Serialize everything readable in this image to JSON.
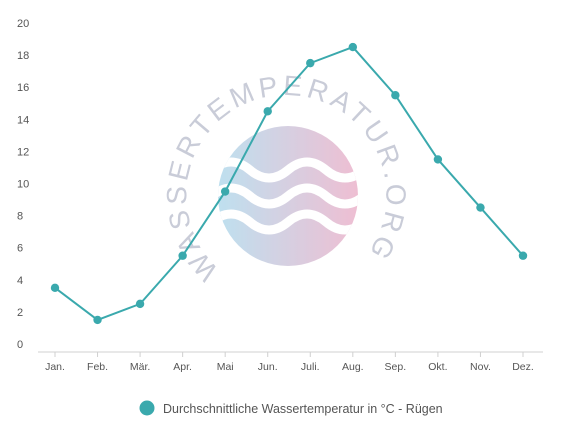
{
  "chart_data": {
    "type": "line",
    "categories": [
      "Jan.",
      "Feb.",
      "Mär.",
      "Apr.",
      "Mai",
      "Jun.",
      "Juli.",
      "Aug.",
      "Sep.",
      "Okt.",
      "Nov.",
      "Dez."
    ],
    "series": [
      {
        "name": "Durchschnittliche Wassertemperatur in °C - Rügen",
        "values": [
          3.5,
          1.5,
          2.5,
          5.5,
          9.5,
          14.5,
          17.5,
          18.5,
          15.5,
          11.5,
          8.5,
          5.5
        ],
        "color": "#3aa9ad"
      }
    ],
    "y_ticks": [
      "0",
      "2",
      "4",
      "6",
      "8",
      "10",
      "12",
      "14",
      "16",
      "18",
      "20"
    ],
    "ylim": [
      0,
      20
    ],
    "grid": false,
    "legend_position": "bottom-center"
  },
  "watermark": {
    "text": "WASSERTEMPERATUR.ORG",
    "colors": [
      "#a9d6ea",
      "#e9a9c4"
    ]
  }
}
